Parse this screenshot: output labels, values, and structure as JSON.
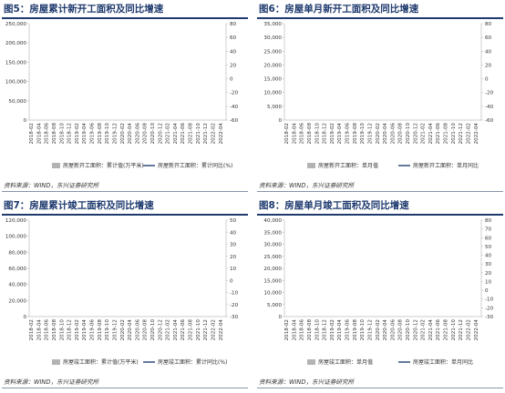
{
  "colors": {
    "bar": "#b3b3b3",
    "line": "#2f4c7d",
    "title": "#1e3a6e",
    "axis": "#bdbdbd"
  },
  "charts": [
    {
      "title": "图5：房屋累计新开工面积及同比增速",
      "source": "资料来源：WIND，东兴证券研究所",
      "legend": [
        "房屋新开工面积：累计值(万平米)",
        "房屋新开工面积：累计同比(%)"
      ]
    },
    {
      "title": "图6：房屋单月新开工面积及同比增速",
      "source": "资料来源：WIND，东兴证券研究所",
      "legend": [
        "房屋新开工面积：单月值",
        "房屋新开工面积：单月同比"
      ]
    },
    {
      "title": "图7：房屋累计竣工面积及同比增速",
      "source": "资料来源：WIND，东兴证券研究所",
      "legend": [
        "房屋竣工面积：累计值(万平米)",
        "房屋竣工面积：累计同比(%)"
      ]
    },
    {
      "title": "图8：房屋单月竣工面积及同比增速",
      "source": "资料来源：WIND，东兴证券研究所",
      "legend": [
        "房屋竣工面积：单月值",
        "房屋竣工面积：单月同比"
      ]
    }
  ],
  "chart_data": [
    {
      "type": "bar",
      "series": [
        {
          "name": "房屋新开工面积：累计值(万平米)",
          "type": "bar",
          "axis": "left",
          "values": []
        },
        {
          "name": "房屋新开工面积：累计同比(%)",
          "type": "line",
          "axis": "right",
          "values": []
        }
      ],
      "x_tick_labels": [
        "2018-02",
        "2018-04",
        "2018-06",
        "2018-08",
        "2018-10",
        "2018-12",
        "2019-02",
        "2019-04",
        "2019-06",
        "2019-08",
        "2019-10",
        "2019-12",
        "2020-02",
        "2020-04",
        "2020-06",
        "2020-08",
        "2020-10",
        "2020-12",
        "2021-02",
        "2021-04",
        "2021-06",
        "2021-08",
        "2021-10",
        "2021-12",
        "2022-02",
        "2022-04"
      ],
      "yleft_ticks": [
        0,
        50000,
        100000,
        150000,
        200000,
        250000
      ],
      "yright_ticks": [
        -60,
        -40,
        -20,
        0,
        20,
        40,
        60,
        80
      ],
      "yleft_lim": [
        0,
        250000
      ],
      "yright_lim": [
        -60,
        80
      ]
    },
    {
      "type": "bar",
      "series": [
        {
          "name": "房屋新开工面积：单月值",
          "type": "bar",
          "axis": "left",
          "values": []
        },
        {
          "name": "房屋新开工面积：单月同比",
          "type": "line",
          "axis": "right",
          "values": []
        }
      ],
      "x_tick_labels": [
        "2018-02",
        "2018-04",
        "2018-06",
        "2018-08",
        "2018-10",
        "2018-12",
        "2019-02",
        "2019-04",
        "2019-06",
        "2019-08",
        "2019-10",
        "2019-12",
        "2020-02",
        "2020-04",
        "2020-06",
        "2020-08",
        "2020-10",
        "2020-12",
        "2021-02",
        "2021-04",
        "2021-06",
        "2021-08",
        "2021-10",
        "2021-12",
        "2022-02",
        "2022-04"
      ],
      "yleft_ticks": [
        0,
        5000,
        10000,
        15000,
        20000,
        25000,
        30000,
        35000
      ],
      "yright_ticks": [
        -60,
        -40,
        -20,
        0,
        20,
        40,
        60,
        80
      ],
      "yleft_lim": [
        0,
        35000
      ],
      "yright_lim": [
        -60,
        80
      ]
    },
    {
      "type": "bar",
      "series": [
        {
          "name": "房屋竣工面积：累计值(万平米)",
          "type": "bar",
          "axis": "left",
          "values": []
        },
        {
          "name": "房屋竣工面积：累计同比(%)",
          "type": "line",
          "axis": "right",
          "values": []
        }
      ],
      "x_tick_labels": [
        "2018-02",
        "2018-04",
        "2018-06",
        "2018-08",
        "2018-10",
        "2018-12",
        "2019-02",
        "2019-04",
        "2019-06",
        "2019-08",
        "2019-10",
        "2019-12",
        "2020-02",
        "2020-04",
        "2020-06",
        "2020-08",
        "2020-10",
        "2020-12",
        "2021-02",
        "2021-04",
        "2021-06",
        "2021-08",
        "2021-10",
        "2021-12",
        "2022-02",
        "2022-04"
      ],
      "yleft_ticks": [
        0,
        20000,
        40000,
        60000,
        80000,
        100000,
        120000
      ],
      "yright_ticks": [
        -30,
        -20,
        -10,
        0,
        10,
        20,
        30,
        40,
        50
      ],
      "yleft_lim": [
        0,
        120000
      ],
      "yright_lim": [
        -30,
        50
      ]
    },
    {
      "type": "bar",
      "series": [
        {
          "name": "房屋竣工面积：单月值",
          "type": "bar",
          "axis": "left",
          "values": []
        },
        {
          "name": "房屋竣工面积：单月同比",
          "type": "line",
          "axis": "right",
          "values": []
        }
      ],
      "x_tick_labels": [
        "2018-02",
        "2018-04",
        "2018-06",
        "2018-08",
        "2018-10",
        "2018-12",
        "2019-02",
        "2019-04",
        "2019-06",
        "2019-08",
        "2019-10",
        "2019-12",
        "2020-02",
        "2020-04",
        "2020-06",
        "2020-08",
        "2020-10",
        "2020-12",
        "2021-02",
        "2021-04",
        "2021-06",
        "2021-08",
        "2021-10",
        "2021-12",
        "2022-02",
        "2022-04"
      ],
      "yleft_ticks": [
        0,
        5000,
        10000,
        15000,
        20000,
        25000,
        30000,
        35000,
        40000
      ],
      "yright_ticks": [
        -30,
        -20,
        -10,
        0,
        10,
        20,
        30,
        40,
        50,
        60,
        70,
        80
      ],
      "yleft_lim": [
        0,
        40000
      ],
      "yright_lim": [
        -30,
        80
      ]
    }
  ]
}
